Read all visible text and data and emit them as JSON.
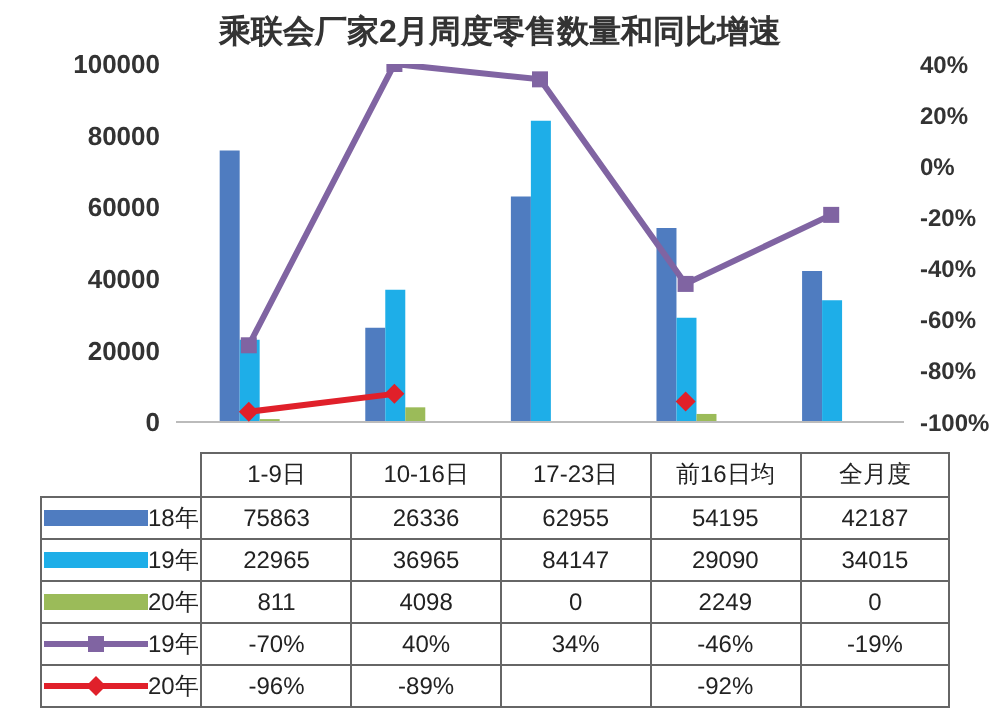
{
  "chart_data": {
    "type": "bar",
    "title": "乘联会厂家2月周度零售数量和同比增速",
    "categories": [
      "1-9日",
      "10-16日",
      "17-23日",
      "前16日均",
      "全月度"
    ],
    "series": [
      {
        "name": "18年",
        "color": "#4f7cc0",
        "values": [
          75863,
          26336,
          62955,
          54195,
          42187
        ],
        "value_labels": [
          "75863",
          "26336",
          "62955",
          "54195",
          "42187"
        ]
      },
      {
        "name": "19年",
        "color": "#1eaee8",
        "values": [
          22965,
          36965,
          84147,
          29090,
          34015
        ],
        "value_labels": [
          "22965",
          "36965",
          "84147",
          "29090",
          "34015"
        ]
      },
      {
        "name": "20年",
        "color": "#9bbb59",
        "values": [
          811,
          4098,
          0,
          2249,
          0
        ],
        "value_labels": [
          "811",
          "4098",
          "0",
          "2249",
          "0"
        ]
      },
      {
        "name": "19年",
        "type": "line",
        "axis": "y2",
        "marker": "square",
        "color": "#8064a2",
        "values": [
          -70,
          40,
          34,
          -46,
          -19
        ],
        "value_labels": [
          "-70%",
          "40%",
          "34%",
          "-46%",
          "-19%"
        ]
      },
      {
        "name": "20年",
        "type": "line",
        "axis": "y2",
        "marker": "diamond",
        "color": "#e0202a",
        "values": [
          -96,
          -89,
          null,
          -92,
          null
        ],
        "value_labels": [
          "-96%",
          "-89%",
          null,
          "-92%",
          null
        ]
      }
    ],
    "ylim": [
      0,
      100000
    ],
    "yticks": [
      0,
      20000,
      40000,
      60000,
      80000,
      100000
    ],
    "y2lim": [
      -100,
      40
    ],
    "y2ticks": [
      {
        "value": -100,
        "label": "-100%"
      },
      {
        "value": -80,
        "label": "-80%"
      },
      {
        "value": -60,
        "label": "-60%"
      },
      {
        "value": -40,
        "label": "-40%"
      },
      {
        "value": -20,
        "label": "-20%"
      },
      {
        "value": 0,
        "label": "0%"
      },
      {
        "value": 20,
        "label": "20%"
      },
      {
        "value": 40,
        "label": "40%"
      }
    ],
    "legend": "bottom",
    "grid": false
  }
}
